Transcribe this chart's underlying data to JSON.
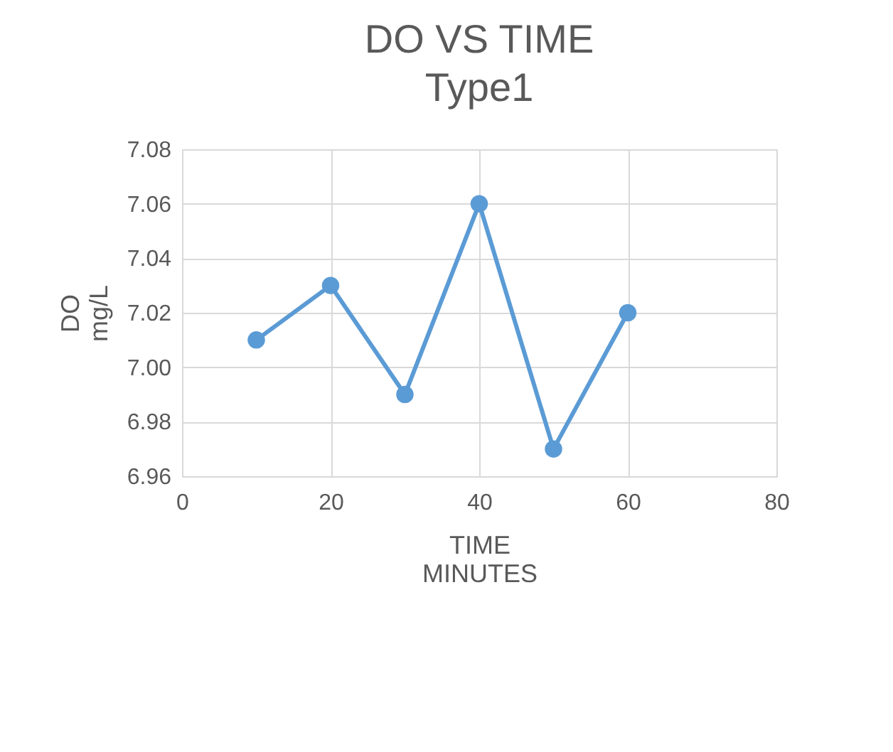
{
  "chart_data": {
    "type": "line",
    "title": "DO VS TIME",
    "subtitle": "Type1",
    "xlabel": "TIME\nMINUTES",
    "ylabel": "DO\nmg/L",
    "x": [
      10,
      20,
      30,
      40,
      50,
      60
    ],
    "series": [
      {
        "color": "#5b9bd5",
        "values": [
          7.01,
          7.03,
          6.99,
          7.06,
          6.97,
          7.02
        ]
      }
    ],
    "xlim": [
      0,
      80
    ],
    "xticks": [
      0,
      20,
      40,
      60,
      80
    ],
    "ylim": [
      6.96,
      7.08
    ],
    "yticks": [
      {
        "value": 6.96,
        "label": "6.96"
      },
      {
        "value": 6.98,
        "label": "6.98"
      },
      {
        "value": 7,
        "label": "7.00"
      },
      {
        "value": 7.02,
        "label": "7.02"
      },
      {
        "value": 7.04,
        "label": "7.04"
      },
      {
        "value": 7.06,
        "label": "7.06"
      },
      {
        "value": 7.08,
        "label": "7.08"
      }
    ],
    "grid": true,
    "marker": "circle",
    "line_style": "solid"
  }
}
